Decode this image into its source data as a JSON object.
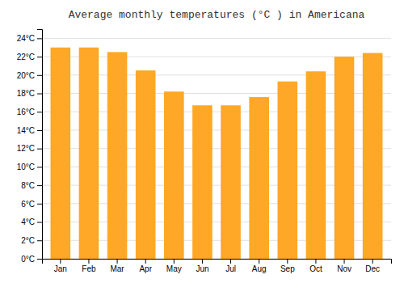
{
  "chart_data": {
    "type": "bar",
    "title": "Average monthly temperatures (°C ) in Americana",
    "categories": [
      "Jan",
      "Feb",
      "Mar",
      "Apr",
      "May",
      "Jun",
      "Jul",
      "Aug",
      "Sep",
      "Oct",
      "Nov",
      "Dec"
    ],
    "values": [
      23.0,
      23.0,
      22.5,
      20.5,
      18.2,
      16.7,
      16.7,
      17.6,
      19.3,
      20.4,
      22.0,
      22.4
    ],
    "color": "#FFA726",
    "ylim": [
      0,
      25
    ],
    "yticks": [
      {
        "value": 0,
        "label": "0°C"
      },
      {
        "value": 2,
        "label": "2°C"
      },
      {
        "value": 4,
        "label": "4°C"
      },
      {
        "value": 6,
        "label": "6°C"
      },
      {
        "value": 8,
        "label": "8°C"
      },
      {
        "value": 10,
        "label": "10°C"
      },
      {
        "value": 12,
        "label": "12°C"
      },
      {
        "value": 14,
        "label": "14°C"
      },
      {
        "value": 16,
        "label": "16°C"
      },
      {
        "value": 18,
        "label": "18°C"
      },
      {
        "value": 20,
        "label": "20°C"
      },
      {
        "value": 22,
        "label": "22°C"
      },
      {
        "value": 24,
        "label": "24°C"
      }
    ],
    "grid": true
  }
}
